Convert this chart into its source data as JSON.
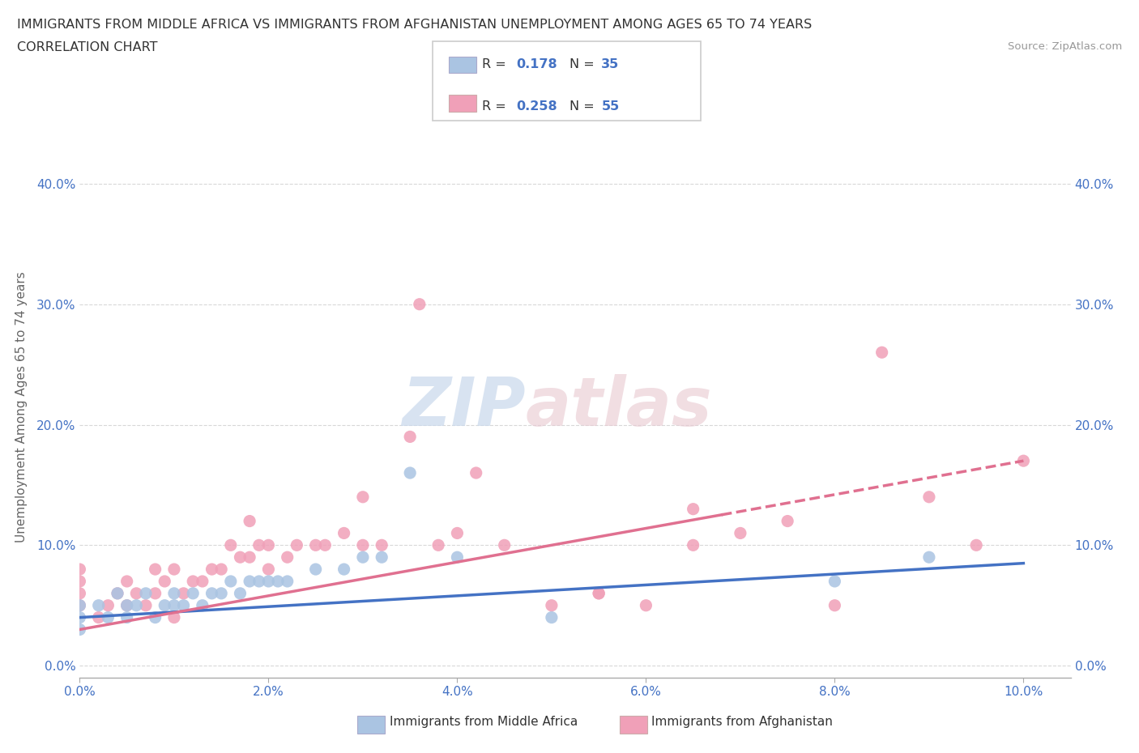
{
  "title_line1": "IMMIGRANTS FROM MIDDLE AFRICA VS IMMIGRANTS FROM AFGHANISTAN UNEMPLOYMENT AMONG AGES 65 TO 74 YEARS",
  "title_line2": "CORRELATION CHART",
  "source_text": "Source: ZipAtlas.com",
  "ylabel": "Unemployment Among Ages 65 to 74 years",
  "xlim": [
    0.0,
    0.105
  ],
  "ylim": [
    -0.01,
    0.44
  ],
  "xtick_labels": [
    "0.0%",
    "2.0%",
    "4.0%",
    "6.0%",
    "8.0%",
    "10.0%"
  ],
  "xtick_values": [
    0.0,
    0.02,
    0.04,
    0.06,
    0.08,
    0.1
  ],
  "ytick_labels": [
    "0.0%",
    "10.0%",
    "20.0%",
    "30.0%",
    "40.0%"
  ],
  "ytick_values": [
    0.0,
    0.1,
    0.2,
    0.3,
    0.4
  ],
  "blue_color": "#aac4e2",
  "pink_color": "#f0a0b8",
  "blue_line_color": "#4472c4",
  "pink_line_color": "#e07090",
  "watermark_zip": "ZIP",
  "watermark_atlas": "atlas",
  "legend_r_blue": "0.178",
  "legend_n_blue": "35",
  "legend_r_pink": "0.258",
  "legend_n_pink": "55",
  "blue_scatter_x": [
    0.0,
    0.0,
    0.0,
    0.002,
    0.003,
    0.004,
    0.005,
    0.005,
    0.006,
    0.007,
    0.008,
    0.009,
    0.01,
    0.01,
    0.011,
    0.012,
    0.013,
    0.014,
    0.015,
    0.016,
    0.017,
    0.018,
    0.019,
    0.02,
    0.021,
    0.022,
    0.025,
    0.028,
    0.03,
    0.032,
    0.035,
    0.04,
    0.05,
    0.08,
    0.09
  ],
  "blue_scatter_y": [
    0.04,
    0.05,
    0.03,
    0.05,
    0.04,
    0.06,
    0.05,
    0.04,
    0.05,
    0.06,
    0.04,
    0.05,
    0.05,
    0.06,
    0.05,
    0.06,
    0.05,
    0.06,
    0.06,
    0.07,
    0.06,
    0.07,
    0.07,
    0.07,
    0.07,
    0.07,
    0.08,
    0.08,
    0.09,
    0.09,
    0.16,
    0.09,
    0.04,
    0.07,
    0.09
  ],
  "pink_scatter_x": [
    0.0,
    0.0,
    0.0,
    0.0,
    0.002,
    0.003,
    0.004,
    0.005,
    0.005,
    0.006,
    0.007,
    0.008,
    0.008,
    0.009,
    0.01,
    0.01,
    0.011,
    0.012,
    0.013,
    0.014,
    0.015,
    0.016,
    0.017,
    0.018,
    0.018,
    0.019,
    0.02,
    0.02,
    0.022,
    0.023,
    0.025,
    0.026,
    0.028,
    0.03,
    0.03,
    0.032,
    0.035,
    0.036,
    0.038,
    0.04,
    0.042,
    0.045,
    0.05,
    0.055,
    0.055,
    0.06,
    0.065,
    0.065,
    0.07,
    0.075,
    0.08,
    0.085,
    0.09,
    0.095,
    0.1
  ],
  "pink_scatter_y": [
    0.05,
    0.06,
    0.07,
    0.08,
    0.04,
    0.05,
    0.06,
    0.05,
    0.07,
    0.06,
    0.05,
    0.06,
    0.08,
    0.07,
    0.04,
    0.08,
    0.06,
    0.07,
    0.07,
    0.08,
    0.08,
    0.1,
    0.09,
    0.09,
    0.12,
    0.1,
    0.08,
    0.1,
    0.09,
    0.1,
    0.1,
    0.1,
    0.11,
    0.1,
    0.14,
    0.1,
    0.19,
    0.3,
    0.1,
    0.11,
    0.16,
    0.1,
    0.05,
    0.06,
    0.06,
    0.05,
    0.13,
    0.1,
    0.11,
    0.12,
    0.05,
    0.26,
    0.14,
    0.1,
    0.17
  ],
  "background_color": "#ffffff",
  "grid_color": "#d8d8d8",
  "tick_color": "#4472c4"
}
